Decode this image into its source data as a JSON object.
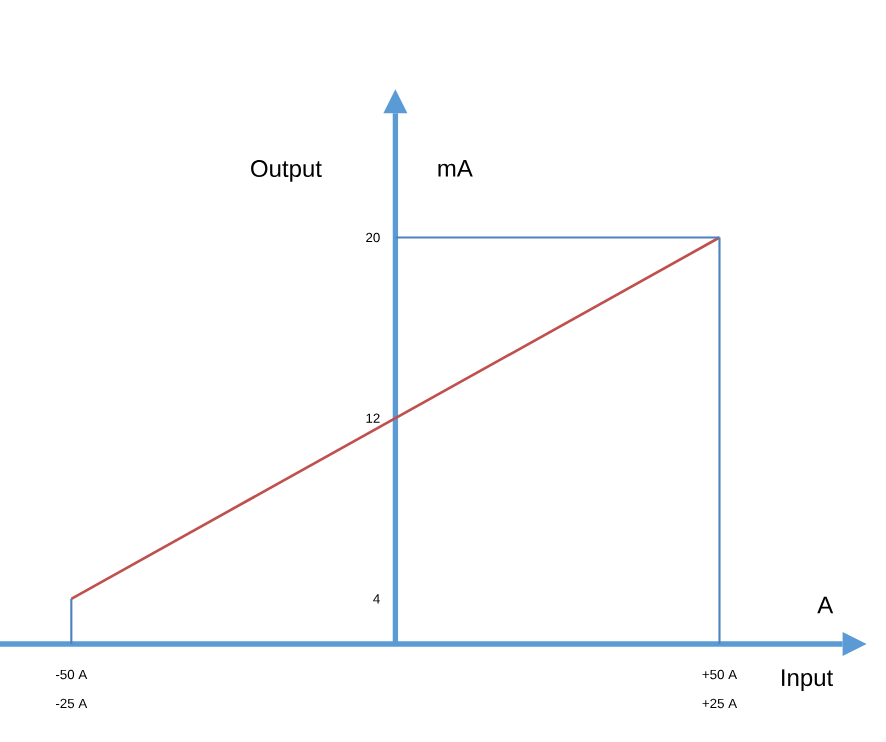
{
  "chart_data": {
    "type": "line",
    "xlabel": "Input",
    "ylabel": "Output",
    "annotations": [
      "mA",
      "A",
      "-25 A",
      "+25 A"
    ],
    "x": [
      -50,
      50
    ],
    "series": [
      {
        "color": "#c0504d",
        "values": [
          4,
          20
        ]
      }
    ],
    "xlim": [
      -61,
      69
    ],
    "ylim": [
      2,
      25.5
    ],
    "xticks": [
      {
        "value": -50,
        "label": "-50 A"
      },
      {
        "value": 50,
        "label": "+50 A"
      }
    ],
    "yticks": [
      4,
      12,
      20
    ],
    "ref_lines": [
      {
        "axis": "x",
        "value": -50,
        "color": "#4f81bd"
      },
      {
        "axis": "x",
        "value": 50,
        "color": "#4f81bd"
      },
      {
        "axis": "y",
        "value": 20,
        "color": "#4f81bd"
      }
    ],
    "grid": false,
    "marker": "none",
    "line_style": "solid"
  }
}
